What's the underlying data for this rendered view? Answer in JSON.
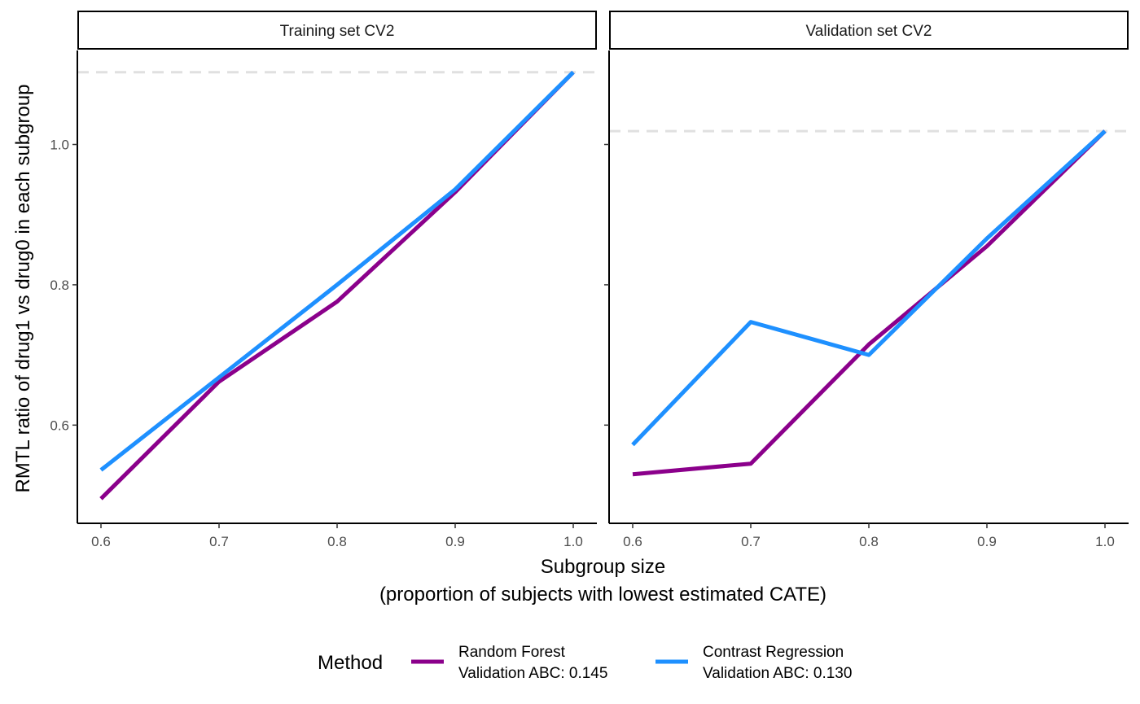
{
  "chart_data": {
    "type": "line",
    "facets": [
      {
        "title": "Training set CV2",
        "x": [
          0.6,
          0.7,
          0.8,
          0.9,
          1.0
        ],
        "series": [
          {
            "key": "rf",
            "values": [
              0.495,
              0.662,
              0.776,
              0.932,
              1.103
            ]
          },
          {
            "key": "cr",
            "values": [
              0.536,
              0.668,
              0.8,
              0.936,
              1.103
            ]
          }
        ],
        "reference_line": 1.103
      },
      {
        "title": "Validation set CV2",
        "x": [
          0.6,
          0.7,
          0.8,
          0.9,
          1.0
        ],
        "series": [
          {
            "key": "rf",
            "values": [
              0.53,
              0.545,
              0.715,
              0.855,
              1.019
            ]
          },
          {
            "key": "cr",
            "values": [
              0.572,
              0.747,
              0.7,
              0.866,
              1.019
            ]
          }
        ],
        "reference_line": 1.019
      }
    ],
    "series_info": [
      {
        "key": "rf",
        "color": "#8B008B",
        "legend_line1": "Random Forest",
        "legend_line2": "Validation ABC: 0.145"
      },
      {
        "key": "cr",
        "color": "#1E90FF",
        "legend_line1": "Contrast Regression",
        "legend_line2": "Validation ABC: 0.130"
      }
    ],
    "xlabel_line1": "Subgroup size",
    "xlabel_line2": "(proportion of subjects with lowest estimated CATE)",
    "ylabel": "RMTL ratio of drug1 vs drug0 in each subgroup",
    "x_ticks": [
      "0.6",
      "0.7",
      "0.8",
      "0.9",
      "1.0"
    ],
    "x_tick_values": [
      0.6,
      0.7,
      0.8,
      0.9,
      1.0
    ],
    "y_ticks": [
      "0.6",
      "0.8",
      "1.0"
    ],
    "y_tick_values": [
      0.6,
      0.8,
      1.0
    ],
    "xlim": [
      0.58,
      1.02
    ],
    "ylim": [
      0.46,
      1.134
    ],
    "legend_title": "Method",
    "legend_position": "bottom",
    "reference_line_color": "#e0e0e0",
    "grid": false
  }
}
